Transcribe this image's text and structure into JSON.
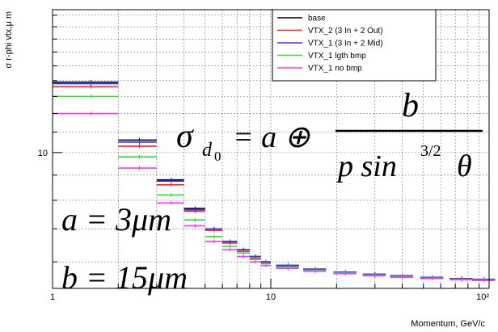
{
  "chart_data": {
    "type": "scatter",
    "title": "",
    "xlabel": "Momentum, GeV/c",
    "ylabel": "σ r-phi vtx,μ m",
    "xscale": "log",
    "yscale": "log",
    "xlim": [
      1,
      100
    ],
    "ylim": [
      5.3,
      19.5
    ],
    "grid": true,
    "legend_position": "top-right",
    "x_tick_labels": [
      "1",
      "10",
      "10²"
    ],
    "y_tick_labels": [
      "10"
    ],
    "series": [
      {
        "name": "base",
        "color": "#000000",
        "x": [
          1.5,
          2.5,
          3.5,
          4.5,
          5.5,
          6.5,
          7.5,
          8.5,
          9.5,
          12,
          16,
          22,
          30,
          40,
          55,
          75,
          95
        ],
        "y": [
          13.9,
          10.6,
          8.8,
          7.7,
          7.0,
          6.6,
          6.35,
          6.15,
          6.0,
          5.9,
          5.8,
          5.72,
          5.66,
          5.62,
          5.58,
          5.55,
          5.53
        ]
      },
      {
        "name": "VTX_2 (3 In + 2 Out)",
        "color": "#ff2222",
        "x": [
          1.5,
          2.5,
          3.5,
          4.5,
          5.5,
          6.5,
          7.5,
          8.5,
          9.5,
          12,
          16,
          22,
          30,
          40,
          55,
          75,
          95
        ],
        "y": [
          13.6,
          10.3,
          8.6,
          7.6,
          6.95,
          6.55,
          6.3,
          6.1,
          5.97,
          5.87,
          5.78,
          5.7,
          5.64,
          5.6,
          5.56,
          5.53,
          5.51
        ]
      },
      {
        "name": "VTX_1 (3 In + 2 Mid)",
        "color": "#3333ff",
        "x": [
          1.5,
          2.5,
          3.5,
          4.5,
          5.5,
          6.5,
          7.5,
          8.5,
          9.5,
          12,
          16,
          22,
          30,
          40,
          55,
          75,
          95
        ],
        "y": [
          13.8,
          10.5,
          8.75,
          7.65,
          7.0,
          6.6,
          6.35,
          6.15,
          6.0,
          5.9,
          5.8,
          5.72,
          5.66,
          5.62,
          5.58,
          5.55,
          5.53
        ]
      },
      {
        "name": "VTX_1 lgth bmp",
        "color": "#33dd33",
        "x": [
          1.5,
          2.5,
          3.5,
          4.5,
          5.5,
          6.5,
          7.5,
          8.5,
          9.5,
          12,
          16,
          22,
          30,
          40,
          55,
          75,
          95
        ],
        "y": [
          13.0,
          9.8,
          8.2,
          7.3,
          6.75,
          6.45,
          6.25,
          6.07,
          5.95,
          5.86,
          5.77,
          5.7,
          5.64,
          5.6,
          5.56,
          5.53,
          5.51
        ]
      },
      {
        "name": "VTX_1 no bmp",
        "color": "#ff33ff",
        "x": [
          1.5,
          2.5,
          3.5,
          4.5,
          5.5,
          6.5,
          7.5,
          8.5,
          9.5,
          12,
          16,
          22,
          30,
          40,
          55,
          75,
          95
        ],
        "y": [
          12.0,
          9.3,
          7.9,
          7.1,
          6.6,
          6.35,
          6.15,
          6.0,
          5.9,
          5.82,
          5.74,
          5.68,
          5.62,
          5.58,
          5.55,
          5.52,
          5.5
        ]
      }
    ],
    "annotations": {
      "formula_sigma": "σ",
      "formula_sub": "d",
      "formula_sub2": "0",
      "formula_rhs": "= a ⊕",
      "formula_num": "b",
      "formula_den": "p sin",
      "formula_exp": "3/2",
      "formula_theta": "θ",
      "a_text": "a = 3μm",
      "b_text": "b = 15μm"
    }
  }
}
